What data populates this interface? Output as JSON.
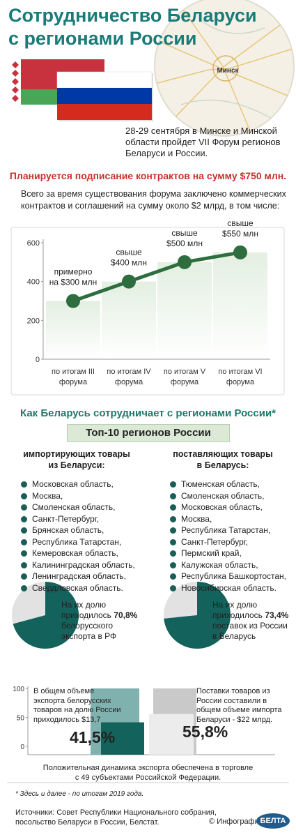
{
  "header": {
    "title": "Сотрудничество Беларуси\nс регионами России",
    "map_label": "Минск"
  },
  "intro": "28-29 сентября в Минске и Минской\nобласти пройдет VII Форум регионов\nБеларуси и России.",
  "headline": "Планируется подписание контрактов на сумму $750 млн.",
  "lead": "Всего за время существования форума заключено коммерческих\nконтрактов и соглашений на сумму около $2 млрд, в том числе:",
  "section_title": "Как Беларусь сотрудничает с регионами России*",
  "top_box": "Топ-10 регионов России",
  "columns": [
    {
      "heading": "импортирующих товары\nиз Беларуси:",
      "items": [
        "Московская область,",
        "Москва,",
        "Смоленская область,",
        "Санкт-Петербург,",
        "Брянская область,",
        "Республика Татарстан,",
        "Кемеровская область,",
        "Калининградская область,",
        "Ленинградская область,",
        "Свердловская область."
      ]
    },
    {
      "heading": "поставляющих товары\nв Беларусь:",
      "items": [
        "Тюменская область,",
        "Смоленская область,",
        "Московская область,",
        "Москва,",
        "Республика Татарстан,",
        "Санкт-Петербург,",
        "Пермский край,",
        "Калужская область,",
        "Республика Башкортостан,",
        "Новосибирская область."
      ]
    }
  ],
  "summary": "Положительная динамика экспорта обеспечена в торговле\nс 49 субъектами Российской Федерации.",
  "footnote": "* Здесь и далее - по итогам 2019 года.",
  "sources": "Источники: Совет Республики Национального собрания,\nпосольство Беларуси в России, Белстат.",
  "credit": "© Инфографика",
  "logo": "БЕЛТА",
  "chart_data": [
    {
      "type": "line",
      "categories": [
        "по итогам III\nфорума",
        "по итогам IV\nфорума",
        "по итогам V\nфорума",
        "по итогам VI\nфорума"
      ],
      "values": [
        300,
        400,
        500,
        550
      ],
      "value_labels": [
        "примерно\nна $300 млн",
        "свыше\n$400 млн",
        "свыше\n$500 млн",
        "свыше\n$550 млн"
      ],
      "color": "#2e6d3e",
      "ylim": [
        0,
        600
      ],
      "yticks": [
        0,
        200,
        400,
        600
      ]
    },
    {
      "type": "pie",
      "values": [
        70.8
      ],
      "value_labels": [
        "70,8%"
      ],
      "colors": [
        "#14625c",
        "#e2e2e2"
      ],
      "text_before": "На их долю\nприходилось ",
      "text_after": "\nбелорусского\nэкспорта в РФ"
    },
    {
      "type": "pie",
      "values": [
        73.4
      ],
      "value_labels": [
        "73,4%"
      ],
      "colors": [
        "#14625c",
        "#e2e2e2"
      ],
      "text_before": "На их долю\nприходилось ",
      "text_after": "\nпоставок из России\nв Беларусь"
    },
    {
      "type": "bar",
      "ylim": [
        0,
        100
      ],
      "yticks": [
        0,
        50,
        100
      ],
      "groups": [
        {
          "text": "В общем объеме\nэкспорта белорусских\nтоваров на долю России\nприходилось $13,7",
          "values": [
            100,
            41.5
          ],
          "colors": [
            "#7fb1ae",
            "#14625c"
          ],
          "value_label": "41,5%"
        },
        {
          "text": "Поставки товаров из\nРоссии составили в\nобщем объеме импорта\nБеларуси - $22 млрд.",
          "values": [
            100,
            55.8
          ],
          "colors": [
            "#c9c9c9",
            "#ececec"
          ],
          "value_label": "55,8%"
        }
      ]
    }
  ]
}
